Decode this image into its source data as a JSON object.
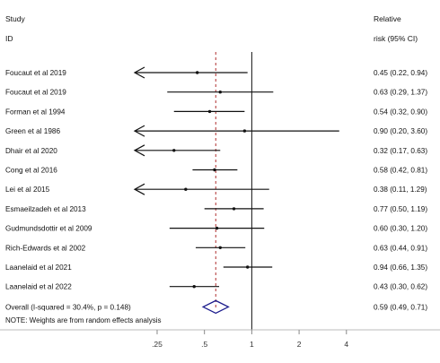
{
  "header": {
    "study_label": "Study",
    "id_label": "ID",
    "effect_label_line1": "Relative",
    "effect_label_line2": "risk (95% CI)"
  },
  "note": "NOTE: Weights are from random effects analysis",
  "colors": {
    "text": "#111111",
    "line": "#111111",
    "overall_diamond": "#1a1a8c",
    "dashed_overall_line": "#b03030",
    "background": "#ffffff"
  },
  "chart_data": {
    "type": "forest",
    "scale": "log",
    "xlim": [
      0.18,
      5.5
    ],
    "x_ticks": [
      {
        "value": 0.25,
        "label": ".25"
      },
      {
        "value": 0.5,
        "label": ".5"
      },
      {
        "value": 1,
        "label": "1"
      },
      {
        "value": 2,
        "label": "2"
      },
      {
        "value": 4,
        "label": "4"
      }
    ],
    "null_line": 1,
    "studies": [
      {
        "name": "Foucaut et al 2019",
        "rr": 0.45,
        "lo": 0.22,
        "hi": 0.94,
        "ci_text": "0.45 (0.22, 0.94)",
        "arrow_left": true
      },
      {
        "name": "Foucaut et al 2019",
        "rr": 0.63,
        "lo": 0.29,
        "hi": 1.37,
        "ci_text": "0.63 (0.29, 1.37)",
        "arrow_left": false
      },
      {
        "name": "Forman et al 1994",
        "rr": 0.54,
        "lo": 0.32,
        "hi": 0.9,
        "ci_text": "0.54 (0.32, 0.90)",
        "arrow_left": false
      },
      {
        "name": "Green et al 1986",
        "rr": 0.9,
        "lo": 0.2,
        "hi": 3.6,
        "ci_text": "0.90 (0.20, 3.60)",
        "arrow_left": true
      },
      {
        "name": "Dhair et al 2020",
        "rr": 0.32,
        "lo": 0.17,
        "hi": 0.63,
        "ci_text": "0.32 (0.17, 0.63)",
        "arrow_left": true
      },
      {
        "name": "Cong et al 2016",
        "rr": 0.58,
        "lo": 0.42,
        "hi": 0.81,
        "ci_text": "0.58 (0.42, 0.81)",
        "arrow_left": false
      },
      {
        "name": "Lei et al 2015",
        "rr": 0.38,
        "lo": 0.11,
        "hi": 1.29,
        "ci_text": "0.38 (0.11, 1.29)",
        "arrow_left": true
      },
      {
        "name": "Esmaeilzadeh et al 2013",
        "rr": 0.77,
        "lo": 0.5,
        "hi": 1.19,
        "ci_text": "0.77 (0.50, 1.19)",
        "arrow_left": false
      },
      {
        "name": "Gudmundsdottir et al 2009",
        "rr": 0.6,
        "lo": 0.3,
        "hi": 1.2,
        "ci_text": "0.60 (0.30, 1.20)",
        "arrow_left": false
      },
      {
        "name": "Rich-Edwards et al 2002",
        "rr": 0.63,
        "lo": 0.44,
        "hi": 0.91,
        "ci_text": "0.63 (0.44, 0.91)",
        "arrow_left": false
      },
      {
        "name": "Laanelaid et al 2021",
        "rr": 0.94,
        "lo": 0.66,
        "hi": 1.35,
        "ci_text": "0.94 (0.66, 1.35)",
        "arrow_left": false
      },
      {
        "name": "Laanelaid et al 2022",
        "rr": 0.43,
        "lo": 0.3,
        "hi": 0.62,
        "ci_text": "0.43 (0.30, 0.62)",
        "arrow_left": false
      }
    ],
    "overall": {
      "label": "Overall  (I-squared = 30.4%, p = 0.148)",
      "rr": 0.59,
      "lo": 0.49,
      "hi": 0.71,
      "ci_text": "0.59 (0.49, 0.71)"
    }
  }
}
